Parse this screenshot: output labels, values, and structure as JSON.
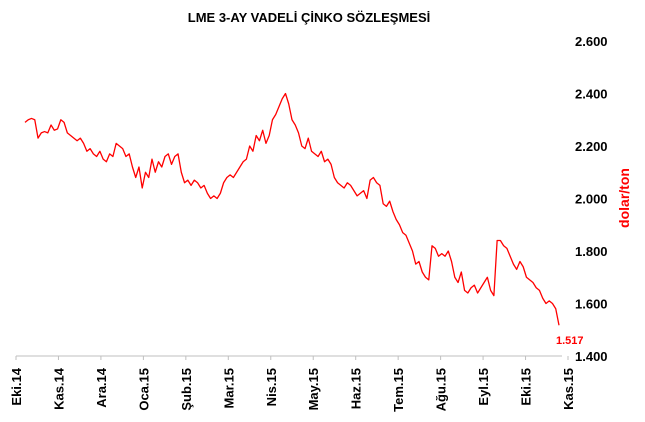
{
  "chart_data": {
    "type": "line",
    "title": "LME 3-AY VADELİ ÇİNKO SÖZLEŞMESİ",
    "ylabel": "dolar/ton",
    "ylim": [
      1400,
      2600
    ],
    "yticks": [
      "2.600",
      "2.400",
      "2.200",
      "2.000",
      "1.800",
      "1.600",
      "1.400"
    ],
    "ytick_values": [
      2600,
      2400,
      2200,
      2000,
      1800,
      1600,
      1400
    ],
    "xticks": [
      "Eki.14",
      "Kas.14",
      "Ara.14",
      "Oca.15",
      "Şub.15",
      "Mar.15",
      "Nis.15",
      "May.15",
      "Haz.15",
      "Tem.15",
      "Ağu.15",
      "Eyl.15",
      "Eki.15",
      "Kas.15"
    ],
    "end_label": "1.517",
    "grid": false,
    "legend": "none",
    "color": "#ff0000",
    "series": [
      {
        "values": [
          2290,
          2300,
          2305,
          2300,
          2230,
          2250,
          2255,
          2250,
          2280,
          2260,
          2265,
          2300,
          2290,
          2250,
          2240,
          2230,
          2220,
          2230,
          2210,
          2180,
          2190,
          2170,
          2160,
          2180,
          2150,
          2140,
          2170,
          2160,
          2210,
          2200,
          2190,
          2160,
          2170,
          2120,
          2080,
          2120,
          2040,
          2100,
          2080,
          2150,
          2100,
          2140,
          2120,
          2160,
          2170,
          2130,
          2160,
          2170,
          2100,
          2060,
          2070,
          2050,
          2070,
          2060,
          2040,
          2050,
          2020,
          2000,
          2010,
          2000,
          2020,
          2060,
          2080,
          2090,
          2080,
          2100,
          2120,
          2140,
          2150,
          2200,
          2180,
          2240,
          2220,
          2260,
          2210,
          2240,
          2300,
          2320,
          2350,
          2380,
          2400,
          2360,
          2300,
          2280,
          2250,
          2200,
          2190,
          2230,
          2180,
          2170,
          2160,
          2180,
          2140,
          2150,
          2130,
          2080,
          2060,
          2050,
          2040,
          2060,
          2050,
          2030,
          2010,
          2020,
          2030,
          2000,
          2070,
          2080,
          2060,
          2050,
          1980,
          1970,
          1990,
          1950,
          1920,
          1900,
          1870,
          1860,
          1830,
          1800,
          1750,
          1760,
          1720,
          1700,
          1690,
          1820,
          1810,
          1780,
          1790,
          1780,
          1800,
          1760,
          1700,
          1680,
          1720,
          1650,
          1640,
          1660,
          1670,
          1640,
          1660,
          1680,
          1700,
          1650,
          1630,
          1840,
          1840,
          1820,
          1810,
          1780,
          1750,
          1730,
          1760,
          1740,
          1700,
          1690,
          1680,
          1660,
          1650,
          1620,
          1600,
          1610,
          1600,
          1580,
          1517
        ]
      }
    ]
  }
}
